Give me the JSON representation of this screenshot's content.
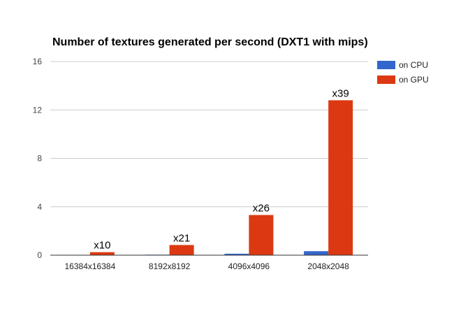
{
  "chart_data": {
    "type": "bar",
    "title": "Number of textures generated per second (DXT1 with mips)",
    "xlabel": "",
    "ylabel": "",
    "categories": [
      "16384x16384",
      "8192x8192",
      "4096x4096",
      "2048x2048"
    ],
    "series": [
      {
        "name": "on CPU",
        "color": "#3366cc",
        "values": [
          0.02,
          0.04,
          0.12,
          0.33
        ]
      },
      {
        "name": "on GPU",
        "color": "#dc3912",
        "values": [
          0.25,
          0.84,
          3.32,
          12.8
        ]
      }
    ],
    "annotations": [
      "x10",
      "x21",
      "x26",
      "x39"
    ],
    "ylim": [
      0,
      16
    ],
    "yticks": [
      0,
      4,
      8,
      12,
      16
    ],
    "grid": true,
    "legend_position": "right"
  }
}
